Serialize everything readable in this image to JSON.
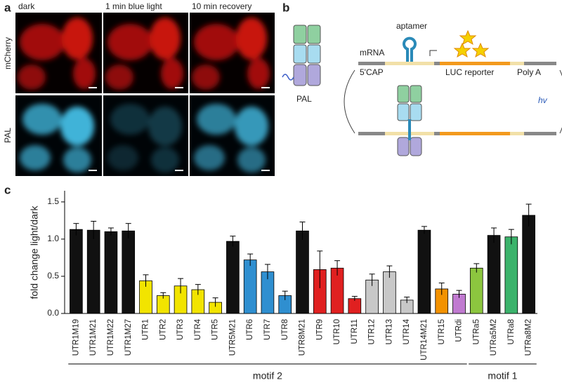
{
  "panel_a": {
    "label": "a",
    "columns": [
      "dark",
      "1 min blue light",
      "10 min recovery"
    ],
    "rows": [
      "mCherry",
      "PAL"
    ]
  },
  "panel_b": {
    "label": "b",
    "aptamer": "aptamer",
    "mrna": "mRNA",
    "cap": "5'CAP",
    "reporter": "LUC reporter",
    "polya": "Poly A",
    "pal": "PAL",
    "hv": "hv"
  },
  "chart_data": {
    "type": "bar",
    "panel_label": "c",
    "y_label": "fold change light/dark",
    "categories": [
      "UTR1M19",
      "UTR1M21",
      "UTR1M22",
      "UTR1M27",
      "UTR1",
      "UTR2",
      "UTR3",
      "UTR4",
      "UTR5",
      "UTR5M21",
      "UTR6",
      "UTR7",
      "UTR8",
      "UTR8M21",
      "UTR9",
      "UTR10",
      "UTR11",
      "UTR12",
      "UTR13",
      "UTR14",
      "UTR14M21",
      "UTR15",
      "UTRdi",
      "UTRa5",
      "UTRa5M2",
      "UTRa8",
      "UTRa8M2"
    ],
    "values": [
      1.13,
      1.12,
      1.1,
      1.11,
      0.44,
      0.24,
      0.37,
      0.32,
      0.15,
      0.97,
      0.72,
      0.56,
      0.24,
      1.11,
      0.59,
      0.61,
      0.2,
      0.45,
      0.56,
      0.18,
      1.12,
      0.33,
      0.26,
      0.61,
      1.05,
      1.03,
      1.32
    ],
    "errors": [
      0.08,
      0.12,
      0.05,
      0.1,
      0.08,
      0.04,
      0.1,
      0.07,
      0.06,
      0.07,
      0.08,
      0.1,
      0.06,
      0.12,
      0.25,
      0.1,
      0.03,
      0.08,
      0.08,
      0.04,
      0.05,
      0.08,
      0.05,
      0.06,
      0.1,
      0.1,
      0.15
    ],
    "colors": [
      "#111111",
      "#111111",
      "#111111",
      "#111111",
      "#f2e400",
      "#f2e400",
      "#f2e400",
      "#f2e400",
      "#f2e400",
      "#111111",
      "#2f8fd0",
      "#2f8fd0",
      "#2f8fd0",
      "#111111",
      "#e02020",
      "#e02020",
      "#e02020",
      "#c8c8c8",
      "#c8c8c8",
      "#c8c8c8",
      "#111111",
      "#f39200",
      "#c07ad0",
      "#8cc63f",
      "#111111",
      "#3bb36b",
      "#111111"
    ],
    "ylim": [
      0,
      1.65
    ],
    "yticks": [
      {
        "value": 0,
        "label": "0.0"
      },
      0.5,
      {
        "value": 1,
        "label": "1.0"
      },
      1.5
    ],
    "groups": [
      {
        "label": "motif 2",
        "first": "UTR1M19",
        "last": "UTRdi"
      },
      {
        "label": "motif 1",
        "first": "UTRa5",
        "last": "UTRa8M2"
      }
    ]
  }
}
